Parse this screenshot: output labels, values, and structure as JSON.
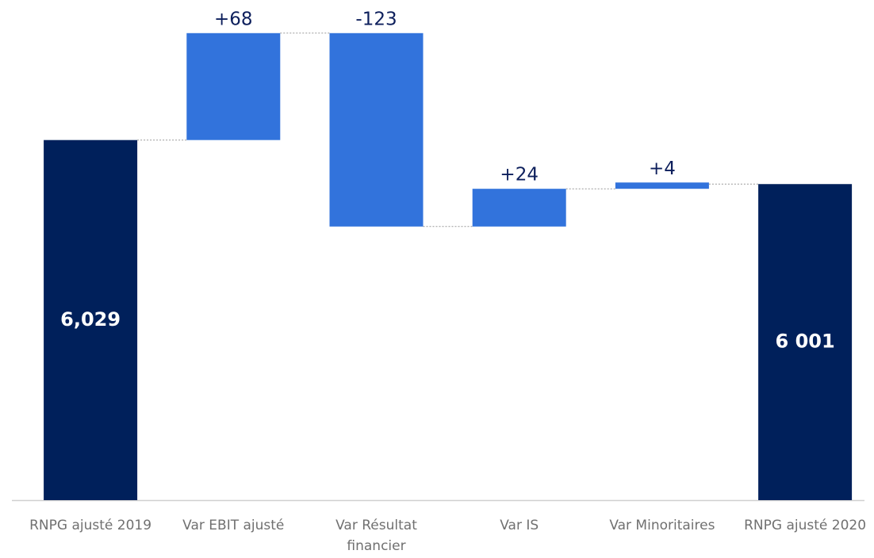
{
  "chart_data": {
    "type": "waterfall",
    "categories": [
      "RNPG ajusté 2019",
      "Var EBIT ajusté",
      "Var Résultat financier",
      "Var IS",
      "Var Minoritaires",
      "RNPG ajusté 2020"
    ],
    "values": [
      6029,
      68,
      -123,
      24,
      4,
      6001
    ],
    "value_labels": [
      "6,029",
      "+68",
      "-123",
      "+24",
      "+4",
      "6 001"
    ],
    "measure": [
      "total",
      "relative",
      "relative",
      "relative",
      "relative",
      "total"
    ],
    "colors": [
      "#00205b",
      "#3273dc",
      "#3273dc",
      "#3273dc",
      "#3273dc",
      "#00205b"
    ],
    "ylim": [
      5800,
      6110
    ]
  }
}
